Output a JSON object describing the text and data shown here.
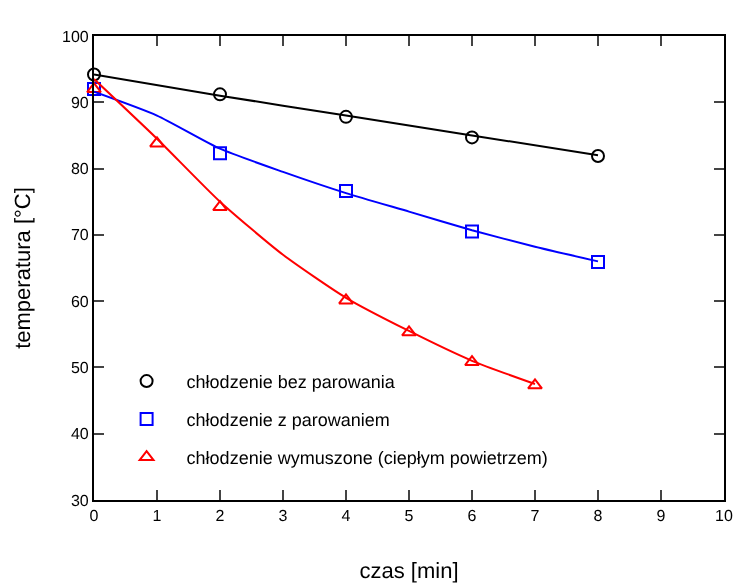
{
  "chart_data": {
    "type": "scatter",
    "xlabel": "czas [min]",
    "ylabel": "temperatura [°C]",
    "xlim": [
      0,
      10
    ],
    "xticks": [
      0,
      1,
      2,
      3,
      4,
      5,
      6,
      7,
      8,
      9,
      10
    ],
    "ylim": [
      30,
      100
    ],
    "yticks": [
      30,
      40,
      50,
      60,
      70,
      80,
      90,
      100
    ],
    "grid": false,
    "legend": "bottom left",
    "series": [
      {
        "name": "chłodzenie bez parowania",
        "color": "#000000",
        "marker": "circle",
        "x": [
          0,
          2,
          4,
          6,
          8
        ],
        "values": [
          94.2,
          91.2,
          87.8,
          84.7,
          81.9
        ]
      },
      {
        "name": "chłodzenie z parowaniem",
        "color": "#0000ff",
        "marker": "square",
        "x": [
          0,
          2,
          4,
          6,
          8
        ],
        "values": [
          92,
          82.3,
          76.6,
          70.5,
          65.9
        ]
      },
      {
        "name": "chłodzenie wymuszone (ciepłym powietrzem)",
        "color": "#ff0000",
        "marker": "triangle",
        "x": [
          0,
          1,
          2,
          4,
          5,
          6,
          7
        ],
        "values": [
          92,
          83.8,
          74.2,
          60.1,
          55.3,
          50.8,
          47.3
        ]
      },
      {
        "type": "line",
        "color": "#000000",
        "marker": "none",
        "x": [
          0,
          2,
          4,
          6,
          8
        ],
        "values": [
          94.2,
          91,
          88,
          85,
          82
        ]
      },
      {
        "type": "line",
        "color": "#0000ff",
        "marker": "none",
        "x": [
          0,
          1,
          2,
          3,
          4,
          5,
          6,
          7,
          8
        ],
        "values": [
          91.6,
          88,
          83,
          79.5,
          76.3,
          73.5,
          70.7,
          68.2,
          66
        ]
      },
      {
        "type": "line",
        "color": "#ff0000",
        "marker": "none",
        "x": [
          0,
          1,
          2,
          3,
          4,
          5,
          6,
          7
        ],
        "values": [
          93.5,
          84.5,
          75,
          67,
          60.5,
          55.5,
          51,
          47.5
        ]
      }
    ]
  }
}
